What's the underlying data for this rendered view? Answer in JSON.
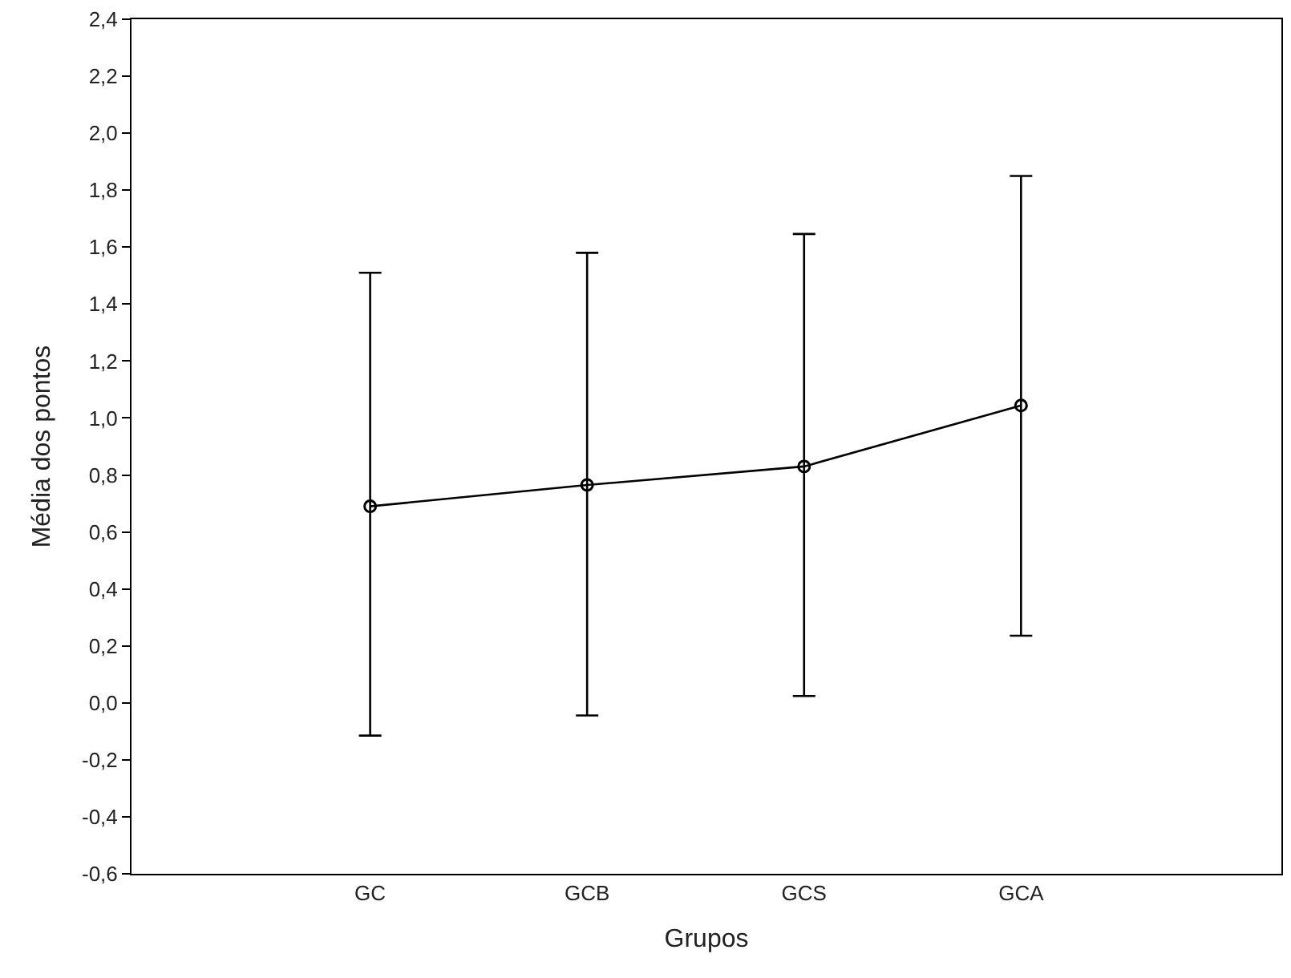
{
  "chart_data": {
    "type": "line",
    "xlabel": "Grupos",
    "ylabel": "Média dos pontos",
    "categories": [
      "GC",
      "GCB",
      "GCS",
      "GCA"
    ],
    "series": [
      {
        "color": "#000000",
        "values": [
          0.69,
          0.765,
          0.83,
          1.044
        ],
        "errors": [
          [
            -0.115,
            1.51
          ],
          [
            -0.044,
            1.58
          ],
          [
            0.024,
            1.646
          ],
          [
            0.236,
            1.85
          ]
        ]
      }
    ],
    "ylim": [
      -0.6,
      2.4
    ],
    "yticks": [
      {
        "value": -0.6,
        "label": "-0,6"
      },
      {
        "value": -0.4,
        "label": "-0,4"
      },
      {
        "value": -0.2,
        "label": "-0,2"
      },
      {
        "value": 0,
        "label": "0,0"
      },
      {
        "value": 0.2,
        "label": "0,2"
      },
      {
        "value": 0.4,
        "label": "0,4"
      },
      {
        "value": 0.6,
        "label": "0,6"
      },
      {
        "value": 0.8,
        "label": "0,8"
      },
      {
        "value": 1.0,
        "label": "1,0"
      },
      {
        "value": 1.2,
        "label": "1,2"
      },
      {
        "value": 1.4,
        "label": "1,4"
      },
      {
        "value": 1.6,
        "label": "1,6"
      },
      {
        "value": 1.8,
        "label": "1,8"
      },
      {
        "value": 2.0,
        "label": "2,0"
      },
      {
        "value": 2.2,
        "label": "2,2"
      },
      {
        "value": 2.4,
        "label": "2,4"
      }
    ],
    "marker": "circle",
    "line_style": "solid"
  }
}
